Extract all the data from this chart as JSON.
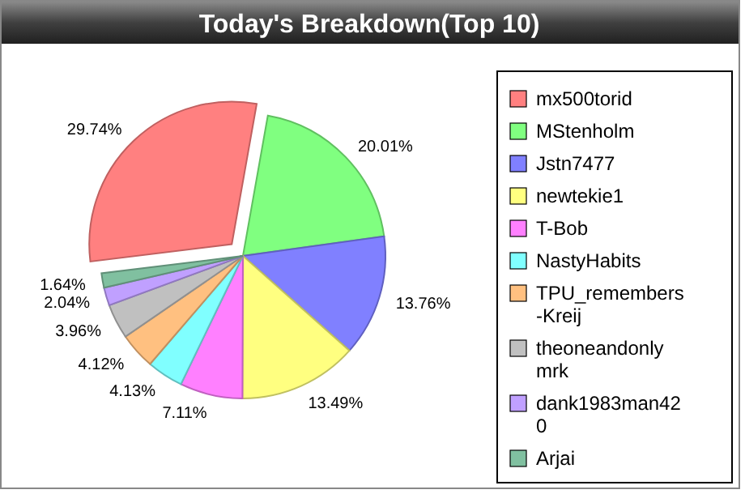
{
  "chart_data": {
    "type": "pie",
    "title": "Today's Breakdown(Top 10)",
    "categories": [
      "mx500torid",
      "MStenholm",
      "Jstn7477",
      "newtekie1",
      "T-Bob",
      "NastyHabits",
      "TPU_remembers-Kreij",
      "theoneandonlymrk",
      "dank1983man420",
      "Arjai"
    ],
    "values": [
      29.74,
      20.01,
      13.76,
      13.49,
      7.11,
      4.13,
      4.12,
      3.96,
      2.04,
      1.64
    ],
    "value_labels": [
      "29.74%",
      "20.01%",
      "13.76%",
      "13.49%",
      "7.11%",
      "4.13%",
      "4.12%",
      "3.96%",
      "2.04%",
      "1.64%"
    ],
    "colors": [
      "#ff8080",
      "#80ff80",
      "#8080ff",
      "#ffff80",
      "#ff80ff",
      "#80ffff",
      "#ffc080",
      "#c0c0c0",
      "#c0a0ff",
      "#80c0a0"
    ],
    "legend": "right"
  }
}
